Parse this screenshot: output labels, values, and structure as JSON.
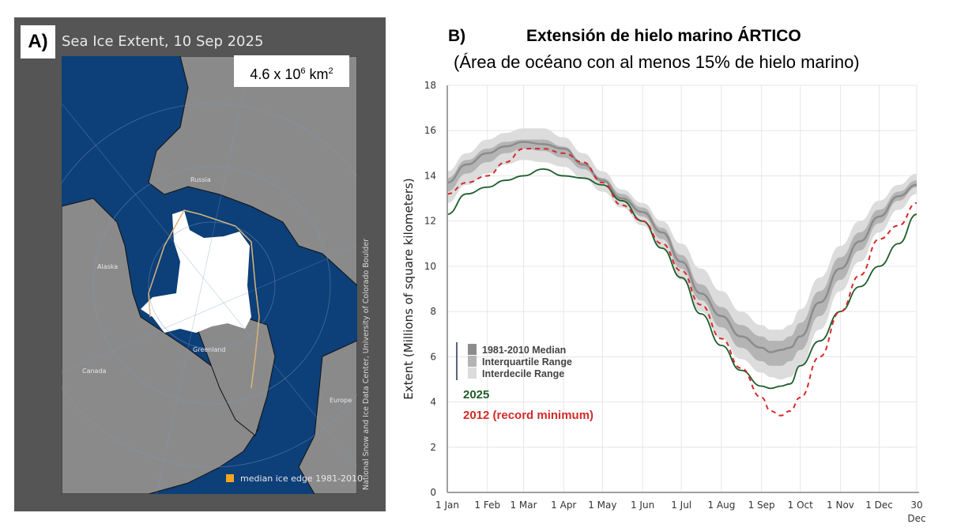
{
  "panel_a": {
    "label": "A)",
    "title": "Sea Ice Extent, 10 Sep 2025",
    "extent_value": "4.6 x 10",
    "extent_exponent": "6",
    "extent_unit": "km",
    "extent_unit_exponent": "2",
    "places": [
      "Russia",
      "Alaska",
      "Greenland",
      "Canada",
      "Europe"
    ],
    "legend_label": "median ice edge 1981-2010",
    "legend_color": "#f4a51c",
    "credit": "National Snow and Ice Data Center, University of Colorado Boulder",
    "colors": {
      "ocean": "#0d3f78",
      "land": "#8a8a8a",
      "ice": "#ffffff",
      "frame": "#555555"
    }
  },
  "panel_b": {
    "label": "B)",
    "title": "Extensión de hielo marino ÁRTICO",
    "subtitle": "(Área de océano con al menos 15% de hielo marino)"
  },
  "chart_data": {
    "type": "line",
    "title": "Extensión de hielo marino ÁRTICO",
    "subtitle": "(Área de océano con al menos 15% de hielo marino)",
    "xlabel": "",
    "ylabel": "Extent (Millions of square kilometers)",
    "ylim": [
      0,
      18
    ],
    "yticks": [
      0,
      2,
      4,
      6,
      8,
      10,
      12,
      14,
      16,
      18
    ],
    "xlim_days": [
      0,
      363
    ],
    "xticks": [
      {
        "day": 0,
        "label": "1 Jan"
      },
      {
        "day": 31,
        "label": "1 Feb"
      },
      {
        "day": 59,
        "label": "1 Mar"
      },
      {
        "day": 90,
        "label": "1 Apr"
      },
      {
        "day": 120,
        "label": "1 May"
      },
      {
        "day": 151,
        "label": "1 Jun"
      },
      {
        "day": 181,
        "label": "1 Jul"
      },
      {
        "day": 212,
        "label": "1 Aug"
      },
      {
        "day": 243,
        "label": "1 Sep"
      },
      {
        "day": 273,
        "label": "1 Oct"
      },
      {
        "day": 304,
        "label": "1 Nov"
      },
      {
        "day": 334,
        "label": "1 Dec"
      },
      {
        "day": 363,
        "label": "30",
        "label2": "Dec"
      }
    ],
    "grid": true,
    "legend_placement": "lower-left",
    "x_days": [
      0,
      15,
      31,
      45,
      59,
      74,
      90,
      105,
      120,
      135,
      151,
      166,
      181,
      196,
      212,
      227,
      243,
      250,
      258,
      265,
      273,
      288,
      304,
      319,
      334,
      349,
      363
    ],
    "bands": [
      {
        "name": "Interdecile Range",
        "color": "#dcdcdc",
        "lower": [
          12.8,
          13.6,
          14.1,
          14.5,
          14.7,
          14.6,
          14.4,
          13.9,
          13.3,
          12.6,
          11.8,
          10.8,
          9.4,
          8.0,
          6.8,
          5.9,
          5.3,
          5.1,
          5.0,
          5.1,
          5.6,
          7.2,
          8.9,
          10.2,
          11.5,
          12.5,
          13.2
        ],
        "upper": [
          14.2,
          15.0,
          15.6,
          15.9,
          16.1,
          16.1,
          15.7,
          15.0,
          14.2,
          13.4,
          12.8,
          12.0,
          11.0,
          9.9,
          8.9,
          8.0,
          7.4,
          7.2,
          7.2,
          7.4,
          8.1,
          9.5,
          10.9,
          12.0,
          12.9,
          13.6,
          14.1
        ]
      },
      {
        "name": "Interquartile Range",
        "color": "#b4b4b4",
        "lower": [
          13.3,
          14.1,
          14.6,
          15.0,
          15.2,
          15.1,
          14.8,
          14.3,
          13.7,
          12.9,
          12.2,
          11.2,
          9.9,
          8.5,
          7.3,
          6.4,
          5.8,
          5.6,
          5.6,
          5.8,
          6.3,
          7.8,
          9.4,
          10.7,
          11.9,
          12.9,
          13.5
        ],
        "upper": [
          13.9,
          14.7,
          15.2,
          15.5,
          15.6,
          15.6,
          15.3,
          14.6,
          13.9,
          13.2,
          12.6,
          11.7,
          10.5,
          9.2,
          8.2,
          7.4,
          6.9,
          6.7,
          6.7,
          6.9,
          7.5,
          8.9,
          10.4,
          11.5,
          12.5,
          13.3,
          13.8
        ]
      }
    ],
    "series": [
      {
        "name": "1981-2010 Median",
        "color": "#8c8c8c",
        "style": "solid",
        "values": [
          13.7,
          14.5,
          15.0,
          15.3,
          15.5,
          15.4,
          15.2,
          14.5,
          13.8,
          13.0,
          12.4,
          11.5,
          10.2,
          8.8,
          7.8,
          6.9,
          6.4,
          6.2,
          6.3,
          6.4,
          6.9,
          8.4,
          9.9,
          11.1,
          12.2,
          13.1,
          13.6
        ]
      },
      {
        "name": "2025",
        "color": "#1e5c2a",
        "style": "solid",
        "values": [
          12.3,
          13.2,
          13.5,
          13.8,
          14.0,
          14.3,
          14.0,
          13.9,
          13.6,
          12.9,
          12.0,
          10.8,
          9.5,
          7.9,
          6.5,
          5.4,
          4.7,
          4.6,
          4.7,
          4.8,
          5.6,
          6.7,
          8.0,
          9.1,
          10.0,
          11.0,
          12.3
        ]
      },
      {
        "name": "2012 (record minimum)",
        "color": "#d42a2a",
        "style": "dashed",
        "values": [
          13.2,
          13.7,
          14.0,
          14.6,
          15.2,
          15.2,
          15.0,
          14.6,
          13.7,
          12.7,
          12.0,
          11.0,
          9.8,
          8.3,
          6.8,
          5.5,
          4.2,
          3.6,
          3.4,
          3.6,
          4.2,
          6.0,
          8.0,
          9.6,
          11.2,
          11.8,
          12.8
        ]
      }
    ],
    "legend": [
      {
        "label": "1981-2010 Median",
        "color": "#8c8c8c"
      },
      {
        "label": "Interquartile Range",
        "color": "#b4b4b4"
      },
      {
        "label": "Interdecile Range",
        "color": "#dcdcdc"
      },
      {
        "label": "2025",
        "color": "#1e5c2a"
      },
      {
        "label": "2012 (record minimum)",
        "color": "#d42a2a"
      }
    ]
  }
}
